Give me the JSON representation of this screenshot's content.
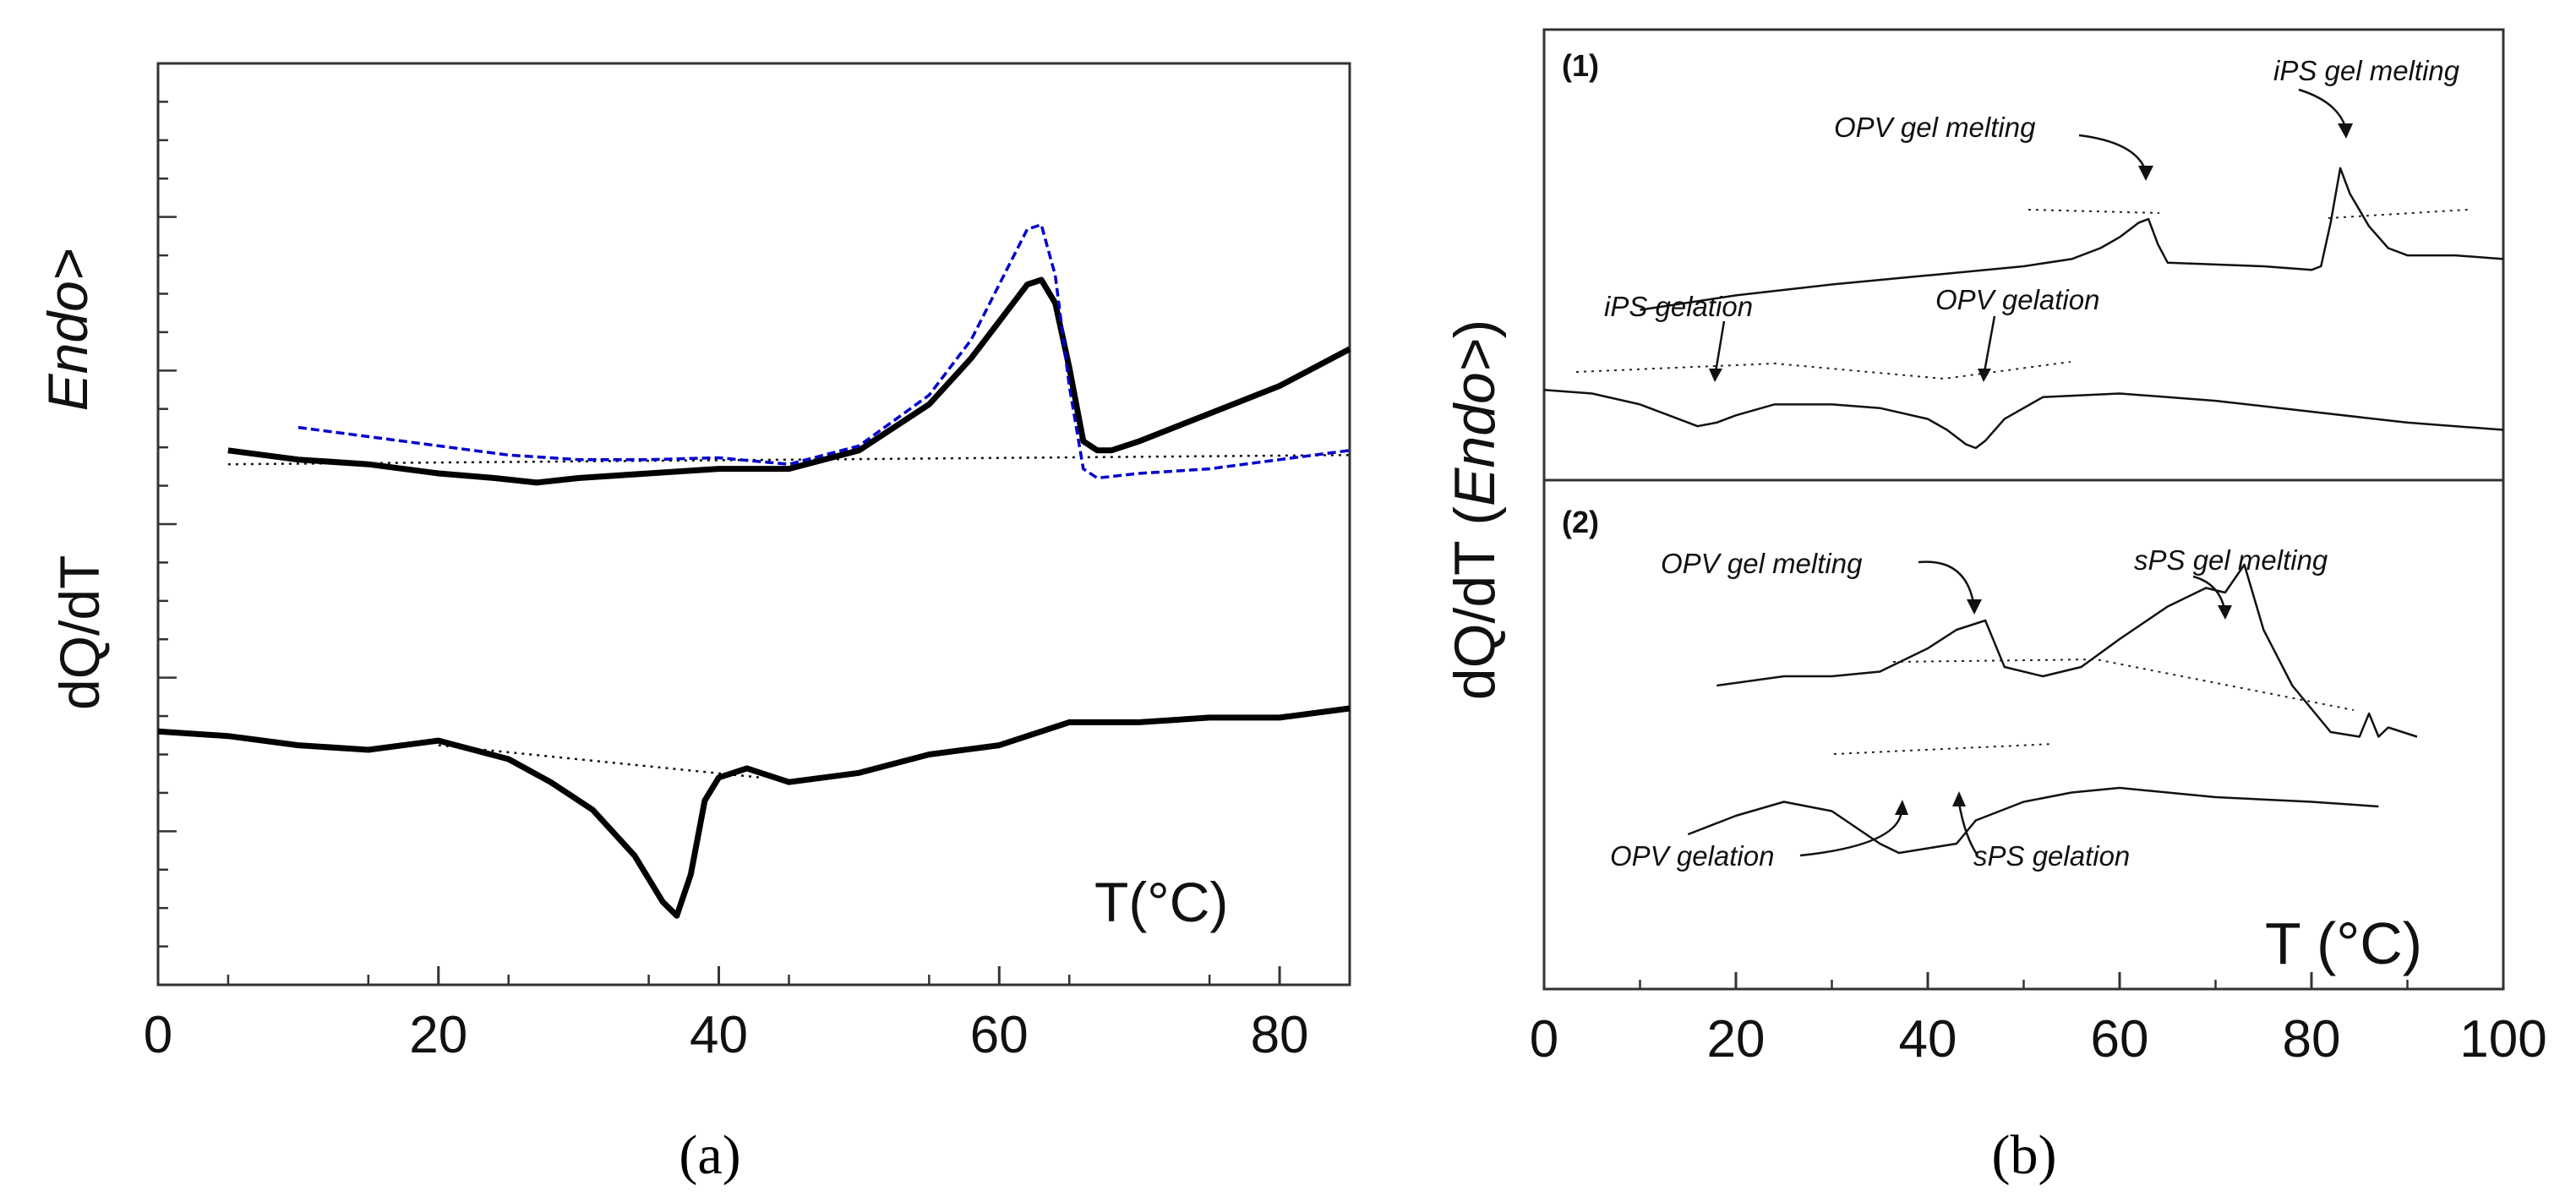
{
  "figure": {
    "panel_a_label": "(a)",
    "panel_b_label": "(b)"
  },
  "chart_data": [
    {
      "type": "line",
      "panel": "(a)",
      "xlabel": "T(°C)",
      "ylabel": "dQ/dT",
      "ylabel_endo": "Endo>",
      "xlim": [
        0,
        85
      ],
      "x_ticks": [
        0,
        20,
        40,
        60,
        80
      ],
      "grid": false,
      "series": [
        {
          "color": "#000000",
          "style": "solid-thick",
          "x": [
            5,
            10,
            15,
            20,
            24,
            27,
            30,
            35,
            40,
            45,
            50,
            55,
            58,
            60,
            62,
            63,
            64,
            65,
            66,
            67,
            68,
            70,
            75,
            80,
            85
          ],
          "y": [
            0.58,
            0.57,
            0.565,
            0.555,
            0.55,
            0.545,
            0.55,
            0.555,
            0.56,
            0.56,
            0.58,
            0.63,
            0.68,
            0.72,
            0.76,
            0.765,
            0.74,
            0.67,
            0.59,
            0.58,
            0.58,
            0.59,
            0.62,
            0.65,
            0.69
          ]
        },
        {
          "color": "#0000cc",
          "style": "dashed",
          "x": [
            10,
            15,
            20,
            25,
            30,
            35,
            40,
            45,
            50,
            55,
            58,
            60,
            62,
            63,
            64,
            65,
            66,
            67,
            70,
            75,
            80,
            85
          ],
          "y": [
            0.605,
            0.595,
            0.585,
            0.575,
            0.57,
            0.57,
            0.572,
            0.565,
            0.585,
            0.64,
            0.7,
            0.76,
            0.82,
            0.825,
            0.77,
            0.65,
            0.56,
            0.55,
            0.555,
            0.56,
            0.57,
            0.58
          ]
        },
        {
          "color": "#000000",
          "style": "solid-thick",
          "x": [
            0,
            5,
            10,
            15,
            20,
            25,
            28,
            31,
            34,
            36,
            37,
            38,
            39,
            40,
            42,
            45,
            50,
            55,
            60,
            65,
            70,
            75,
            80,
            85
          ],
          "y": [
            0.275,
            0.27,
            0.26,
            0.255,
            0.265,
            0.245,
            0.22,
            0.19,
            0.14,
            0.09,
            0.075,
            0.12,
            0.2,
            0.225,
            0.235,
            0.22,
            0.23,
            0.25,
            0.26,
            0.285,
            0.285,
            0.29,
            0.29,
            0.3
          ]
        }
      ],
      "baselines": [
        {
          "x": [
            5,
            85
          ],
          "y": [
            0.565,
            0.575
          ]
        },
        {
          "x": [
            20,
            43
          ],
          "y": [
            0.26,
            0.225
          ]
        }
      ]
    },
    {
      "type": "line",
      "panel": "(b)",
      "xlabel": "T (°C)",
      "ylabel": "dQ/dT (Endo>)",
      "ylabel_prefix": "dQ/dT (",
      "ylabel_endo": "Endo>",
      "ylabel_suffix": ")",
      "xlim": [
        0,
        100
      ],
      "x_ticks": [
        0,
        20,
        40,
        60,
        80,
        100
      ],
      "grid": false,
      "subplots": [
        {
          "label": "(1)",
          "annotations": [
            "OPV gel melting",
            "iPS gel melting",
            "iPS gelation",
            "OPV gelation"
          ],
          "series": [
            {
              "x": [
                10,
                20,
                30,
                40,
                50,
                55,
                58,
                60,
                62,
                63,
                64,
                65,
                70,
                75,
                80,
                81,
                82,
                83,
                84,
                86,
                88,
                90,
                95,
                100
              ],
              "y": [
                0.38,
                0.42,
                0.45,
                0.475,
                0.5,
                0.52,
                0.55,
                0.58,
                0.62,
                0.63,
                0.56,
                0.51,
                0.505,
                0.5,
                0.49,
                0.5,
                0.62,
                0.77,
                0.7,
                0.61,
                0.55,
                0.53,
                0.53,
                0.52
              ]
            },
            {
              "x": [
                0,
                5,
                10,
                14,
                16,
                18,
                20,
                24,
                30,
                35,
                40,
                42,
                44,
                45,
                46,
                48,
                52,
                60,
                70,
                80,
                90,
                100
              ],
              "y": [
                0.16,
                0.15,
                0.12,
                0.08,
                0.06,
                0.07,
                0.09,
                0.12,
                0.12,
                0.11,
                0.08,
                0.05,
                0.01,
                0.0,
                0.02,
                0.08,
                0.14,
                0.15,
                0.13,
                0.1,
                0.07,
                0.05
              ]
            }
          ]
        },
        {
          "label": "(2)",
          "annotations": [
            "OPV gel melting",
            "sPS gel melting",
            "OPV gelation",
            "sPS gelation"
          ],
          "series": [
            {
              "x": [
                18,
                25,
                30,
                35,
                40,
                43,
                46,
                48,
                52,
                56,
                60,
                65,
                69,
                71,
                73,
                75,
                78,
                82,
                85,
                86,
                87,
                88,
                91
              ],
              "y": [
                0.58,
                0.6,
                0.6,
                0.61,
                0.66,
                0.7,
                0.72,
                0.62,
                0.6,
                0.62,
                0.68,
                0.75,
                0.79,
                0.78,
                0.84,
                0.7,
                0.58,
                0.48,
                0.47,
                0.52,
                0.47,
                0.49,
                0.47
              ]
            },
            {
              "x": [
                15,
                20,
                25,
                30,
                35,
                37,
                40,
                43,
                45,
                50,
                55,
                60,
                70,
                80,
                87
              ],
              "y": [
                0.26,
                0.3,
                0.33,
                0.31,
                0.24,
                0.22,
                0.23,
                0.24,
                0.29,
                0.33,
                0.35,
                0.36,
                0.34,
                0.33,
                0.32
              ]
            }
          ]
        }
      ]
    }
  ]
}
